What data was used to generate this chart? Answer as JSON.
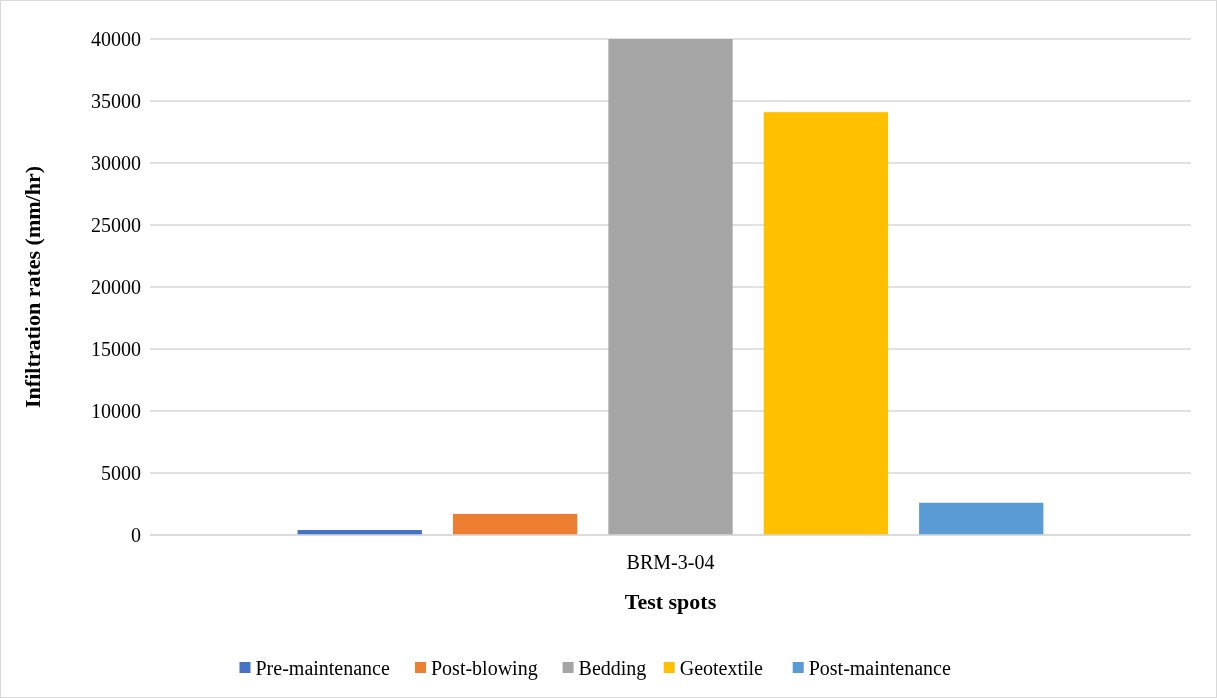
{
  "chart_data": {
    "type": "bar",
    "xlabel": "Test spots",
    "ylabel": "Infiltration rates (mm/hr)",
    "categories": [
      "BRM-3-04"
    ],
    "series": [
      {
        "name": "Pre-maintenance",
        "color": "#4472c4",
        "values": [
          400
        ]
      },
      {
        "name": "Post-blowing",
        "color": "#ed7d31",
        "values": [
          1700
        ]
      },
      {
        "name": "Bedding",
        "color": "#a5a5a5",
        "values": [
          40000
        ]
      },
      {
        "name": "Geotextile",
        "color": "#ffc000",
        "values": [
          34100
        ]
      },
      {
        "name": "Post-maintenance",
        "color": "#5b9bd5",
        "values": [
          2600
        ]
      }
    ],
    "ylim": [
      0,
      40000
    ],
    "yticks": [
      0,
      5000,
      10000,
      15000,
      20000,
      25000,
      30000,
      35000,
      40000
    ],
    "grid": "y",
    "legend": "bottom"
  }
}
